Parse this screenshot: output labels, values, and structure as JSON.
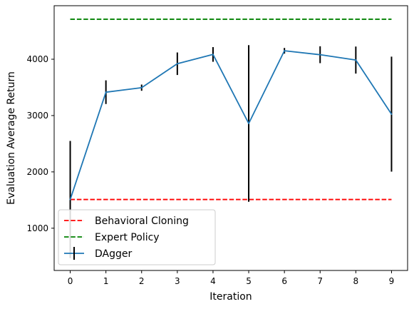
{
  "chart_data": {
    "type": "line",
    "xlabel": "Iteration",
    "ylabel": "Evaluation Average Return",
    "x": [
      0,
      1,
      2,
      3,
      4,
      5,
      6,
      7,
      8,
      9
    ],
    "x_ticks": [
      "0",
      "1",
      "2",
      "3",
      "4",
      "5",
      "6",
      "7",
      "8",
      "9"
    ],
    "y_ticks": [
      "1000",
      "2000",
      "3000",
      "4000"
    ],
    "xlim": [
      -0.45,
      9.45
    ],
    "ylim": [
      250,
      4950
    ],
    "grid": false,
    "legend_position": "lower-left",
    "series": [
      {
        "name": "Behavioral Cloning",
        "kind": "hline",
        "value": 1510,
        "color": "#ff0000",
        "dashed": true
      },
      {
        "name": "Expert Policy",
        "kind": "hline",
        "value": 4710,
        "color": "#008000",
        "dashed": true
      },
      {
        "name": "DAgger",
        "kind": "errorbar",
        "color": "#1f77b4",
        "error_color": "#000000",
        "values": [
          1510,
          3415,
          3495,
          3920,
          4085,
          2860,
          4150,
          4080,
          3985,
          3025
        ],
        "errors": [
          1040,
          210,
          55,
          200,
          130,
          1390,
          50,
          150,
          240,
          1020
        ]
      }
    ]
  }
}
